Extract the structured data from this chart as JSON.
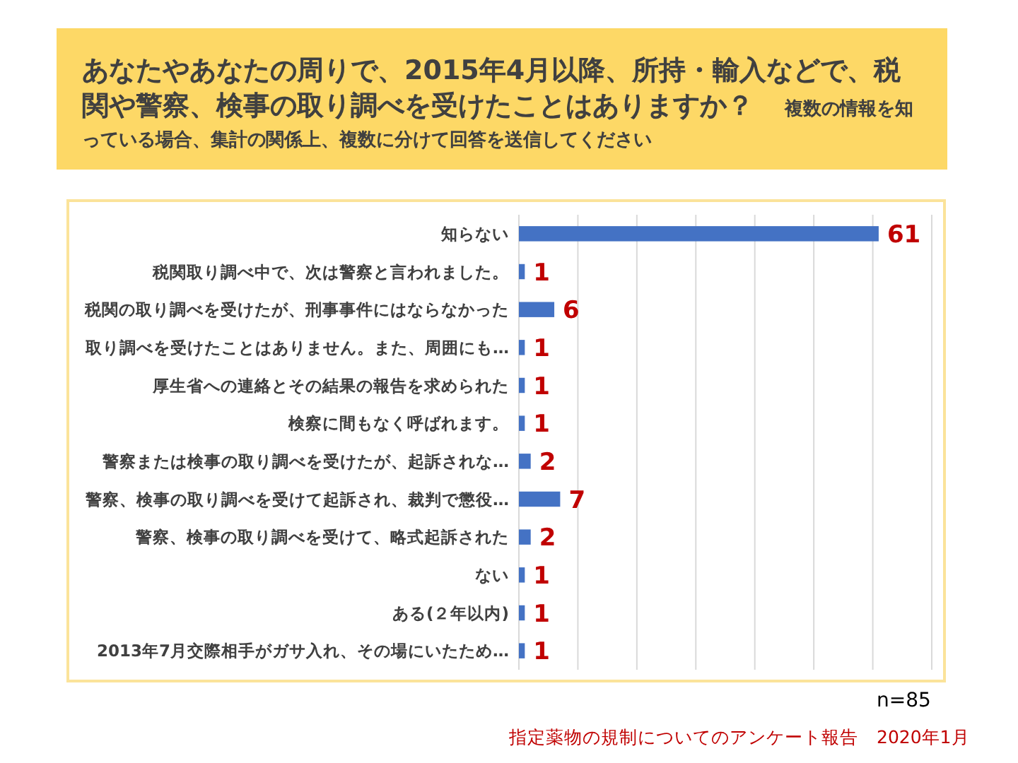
{
  "chart_data": {
    "type": "bar",
    "orientation": "horizontal",
    "title": "あなたやあなたの周りで、2015年4月以降、所持・輸入などで、税関や警察、検事の取り調べを受けたことはありますか？",
    "subtitle": "複数の情報を知っている場合、集計の関係上、複数に分けて回答を送信してください",
    "categories": [
      "知らない",
      "税関取り調べ中で、次は警察と言われました。",
      "税関の取り調べを受けたが、刑事事件にはならなかった",
      "取り調べを受けたことはありません。また、周囲にも…",
      "厚生省への連絡とその結果の報告を求められた",
      "検察に間もなく呼ばれます。",
      "警察または検事の取り調べを受けたが、起訴されな…",
      "警察、検事の取り調べを受けて起訴され、裁判で懲役…",
      "警察、検事の取り調べを受けて、略式起訴された",
      "ない",
      "ある(２年以内)",
      "2013年7月交際相手がガサ入れ、その場にいたため…"
    ],
    "values": [
      61,
      1,
      6,
      1,
      1,
      1,
      2,
      7,
      2,
      1,
      1,
      1
    ],
    "color": "#4472c4",
    "xlim": [
      0,
      70
    ],
    "xticks": [
      {
        "value": 0,
        "label": null
      },
      {
        "value": 10,
        "label": null
      },
      {
        "value": 20,
        "label": null
      },
      {
        "value": 30,
        "label": null
      },
      {
        "value": 40,
        "label": null
      },
      {
        "value": 50,
        "label": null
      },
      {
        "value": 60,
        "label": null
      },
      {
        "value": 70,
        "label": null
      }
    ],
    "grid": "x",
    "data_labels": true,
    "annotations": [
      "n=85",
      "指定薬物の規制についてのアンケート報告　2020年1月"
    ]
  }
}
